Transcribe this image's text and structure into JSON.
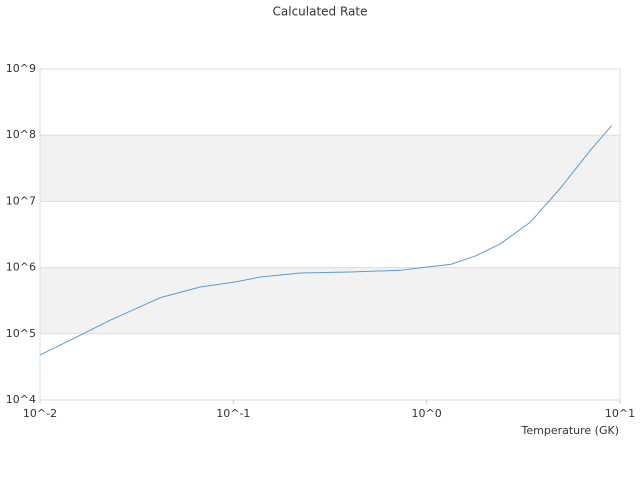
{
  "chart_data": {
    "type": "line",
    "title": "Calculated Rate",
    "x_label": "Temperature (GK)",
    "x_log": true,
    "y_log": true,
    "grid": "bands",
    "band_color": "#f2f2f2",
    "xlim": [
      0.01,
      10
    ],
    "xticks": [
      {
        "value": 0.01,
        "label": "10^-2"
      },
      {
        "value": 0.1,
        "label": "10^-1"
      },
      {
        "value": 1,
        "label": "10^0"
      },
      {
        "value": 10,
        "label": "10^1"
      }
    ],
    "ylim": [
      10000,
      1000000000
    ],
    "yticks": [
      {
        "value": 10000,
        "label": "10^4"
      },
      {
        "value": 100000,
        "label": "10^5"
      },
      {
        "value": 1000000,
        "label": "10^6"
      },
      {
        "value": 10000000,
        "label": "10^7"
      },
      {
        "value": 100000000,
        "label": "10^8"
      },
      {
        "value": 1000000000,
        "label": "10^9"
      }
    ],
    "x": [
      0.01,
      0.0161,
      0.023,
      0.0418,
      0.0673,
      0.1,
      0.138,
      0.222,
      0.402,
      0.733,
      1.0,
      1.33,
      1.79,
      2.41,
      3.45,
      4.93,
      7.05,
      9.06
    ],
    "series": [
      {
        "color": "#5b9bd5",
        "values": [
          48000,
          95000,
          160000,
          350000,
          510000,
          600000,
          720000,
          830000,
          860000,
          910000,
          1020000,
          1120000,
          1500000,
          2300000,
          4900000,
          16000000,
          60000000,
          140000000
        ]
      }
    ]
  }
}
